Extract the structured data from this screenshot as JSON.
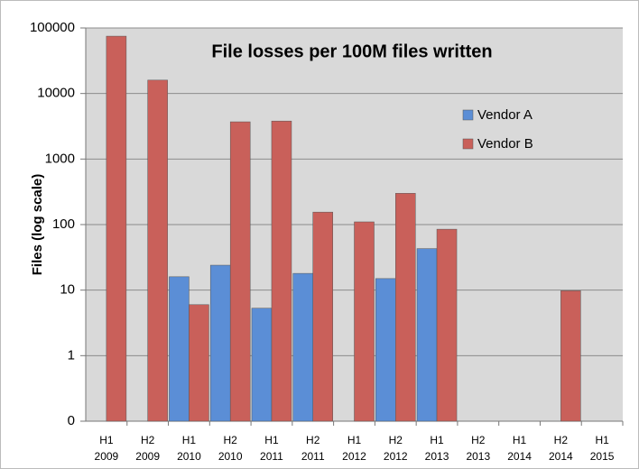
{
  "chart_data": {
    "type": "bar",
    "title": "File losses per 100M files written",
    "ylabel": "Files (log scale)",
    "categories": [
      "H1 2009",
      "H2 2009",
      "H1 2010",
      "H2 2010",
      "H1 2011",
      "H2 2011",
      "H1 2012",
      "H2 2012",
      "H1 2013",
      "H2 2013",
      "H1 2014",
      "H2 2014",
      "H1 2015"
    ],
    "series": [
      {
        "name": "Vendor A",
        "color": "#5b8ed6",
        "values": [
          null,
          null,
          16,
          24,
          5.3,
          18,
          null,
          15,
          43,
          null,
          null,
          null,
          null
        ]
      },
      {
        "name": "Vendor B",
        "color": "#c9605a",
        "values": [
          75000,
          16000,
          6,
          3700,
          3800,
          155,
          110,
          300,
          85,
          null,
          null,
          9.8,
          null
        ]
      }
    ],
    "ylim": [
      0.1,
      100000
    ],
    "yticks": [
      {
        "value": 0.1,
        "label": "0"
      },
      1,
      10,
      100,
      1000,
      10000,
      100000
    ],
    "log": true,
    "grid": true,
    "legend": "top-right"
  }
}
